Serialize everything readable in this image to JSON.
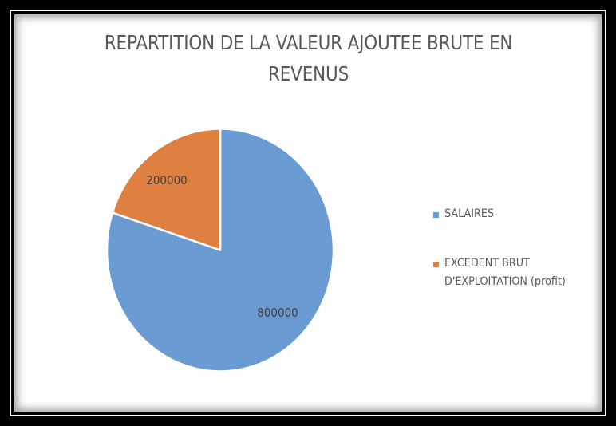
{
  "chart_data": {
    "type": "pie",
    "title": "REPARTITION DE LA VALEUR AJOUTEE BRUTE EN REVENUS",
    "title_lines": [
      "REPARTITION DE LA VALEUR AJOUTEE BRUTE EN",
      "REVENUS"
    ],
    "categories": [
      "SALAIRES",
      "EXCEDENT BRUT D'EXPLOITATION (profit)"
    ],
    "values": [
      800000,
      200000
    ],
    "data_labels": [
      "800000",
      "200000"
    ],
    "colors": [
      "#6a9bd2",
      "#e08040"
    ],
    "legend_position": "right",
    "legend": [
      {
        "label_lines": [
          "SALAIRES"
        ],
        "color": "#6a9bd2"
      },
      {
        "label_lines": [
          "EXCEDENT BRUT",
          "D'EXPLOITATION (profit)"
        ],
        "color": "#e08040"
      }
    ]
  }
}
